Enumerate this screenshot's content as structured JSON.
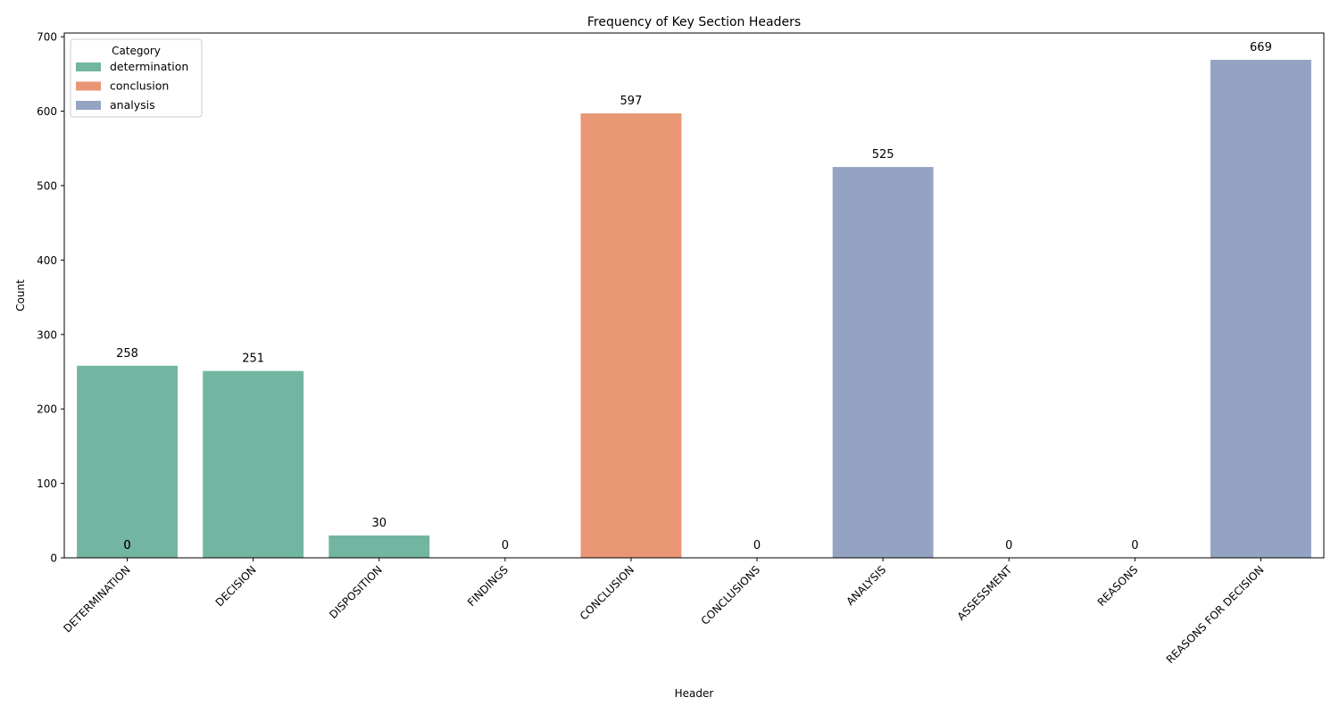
{
  "chart_data": {
    "type": "bar",
    "title": "Frequency of Key Section Headers",
    "xlabel": "Header",
    "ylabel": "Count",
    "ylim": [
      0,
      705
    ],
    "yticks": [
      0,
      100,
      200,
      300,
      400,
      500,
      600,
      700
    ],
    "grid": false,
    "categories": [
      "DETERMINATION",
      "DECISION",
      "DISPOSITION",
      "FINDINGS",
      "CONCLUSION",
      "CONCLUSIONS",
      "ANALYSIS",
      "ASSESSMENT",
      "REASONS",
      "REASONS FOR DECISION"
    ],
    "values": [
      258,
      251,
      30,
      0,
      597,
      0,
      525,
      0,
      0,
      669
    ],
    "bar_category": [
      "determination",
      "determination",
      "determination",
      "determination",
      "conclusion",
      "conclusion",
      "analysis",
      "analysis",
      "analysis",
      "analysis"
    ],
    "data_labels": [
      "258",
      "251",
      "30",
      "0",
      "597",
      "0",
      "525",
      "0",
      "0",
      "669"
    ],
    "extra_zero_labels": [
      {
        "category": "DETERMINATION",
        "text": "0"
      },
      {
        "category": "DETERMINATION",
        "text": "0"
      }
    ],
    "legend": {
      "title": "Category",
      "placement": "top-left",
      "entries": [
        {
          "name": "determination",
          "color": "#72b6a1"
        },
        {
          "name": "conclusion",
          "color": "#e99675"
        },
        {
          "name": "analysis",
          "color": "#95a3c3"
        }
      ]
    }
  }
}
